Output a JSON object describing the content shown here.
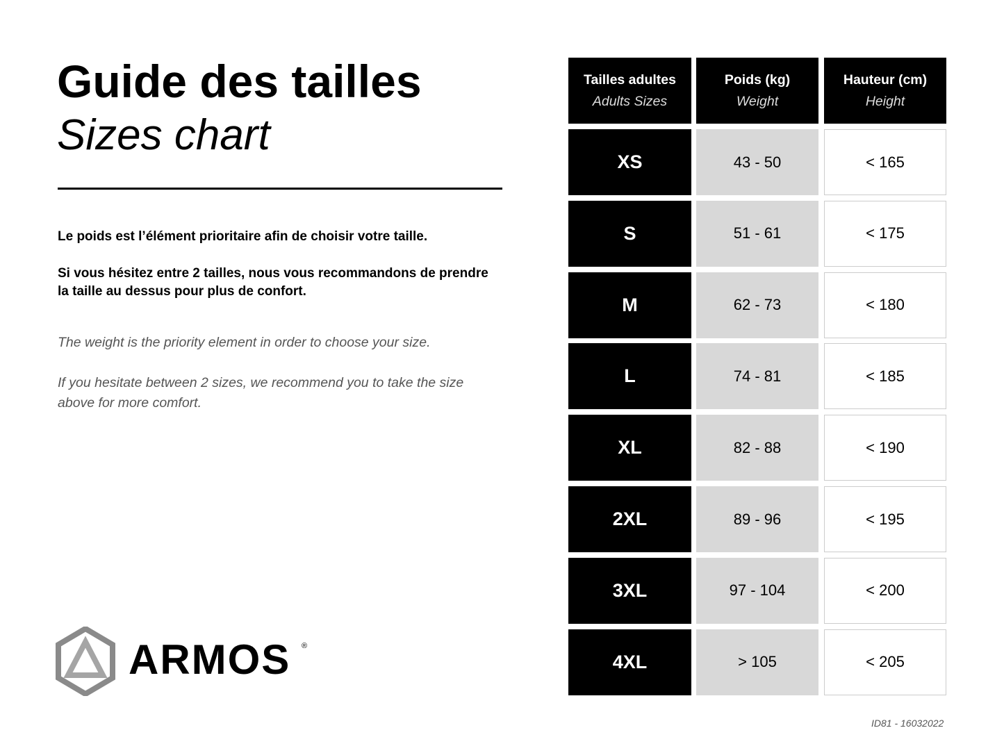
{
  "heading": {
    "title": "Guide des tailles",
    "subtitle": "Sizes chart"
  },
  "text": {
    "fr_1": "Le poids est l’élément prioritaire afin de choisir votre taille.",
    "fr_2": "Si vous hésitez entre 2 tailles, nous vous recommandons de prendre la taille au dessus pour plus de confort.",
    "en_1": "The weight is the priority element in order to choose your size.",
    "en_2": "If you hesitate between 2 sizes, we recommend you to take the size above for more comfort."
  },
  "table": {
    "headers": [
      {
        "fr": "Tailles adultes",
        "en": "Adults Sizes"
      },
      {
        "fr": "Poids (kg)",
        "en": "Weight"
      },
      {
        "fr": "Hauteur (cm)",
        "en": "Height"
      }
    ],
    "rows": [
      {
        "size": "XS",
        "weight": "43 - 50",
        "height": "< 165"
      },
      {
        "size": "S",
        "weight": "51 - 61",
        "height": "< 175"
      },
      {
        "size": "M",
        "weight": "62 - 73",
        "height": "< 180"
      },
      {
        "size": "L",
        "weight": "74 - 81",
        "height": "< 185"
      },
      {
        "size": "XL",
        "weight": "82 - 88",
        "height": "< 190"
      },
      {
        "size": "2XL",
        "weight": "89 - 96",
        "height": "< 195"
      },
      {
        "size": "3XL",
        "weight": "97 - 104",
        "height": "< 200"
      },
      {
        "size": "4XL",
        "weight": "> 105",
        "height": "< 205"
      }
    ]
  },
  "logo": {
    "brand": "ARMOS",
    "mark": "®"
  },
  "footer": {
    "id": "ID81 - 16032022"
  },
  "colors": {
    "header_bg": "#000000",
    "weight_bg": "#d8d8d8",
    "height_bg": "#ffffff"
  }
}
